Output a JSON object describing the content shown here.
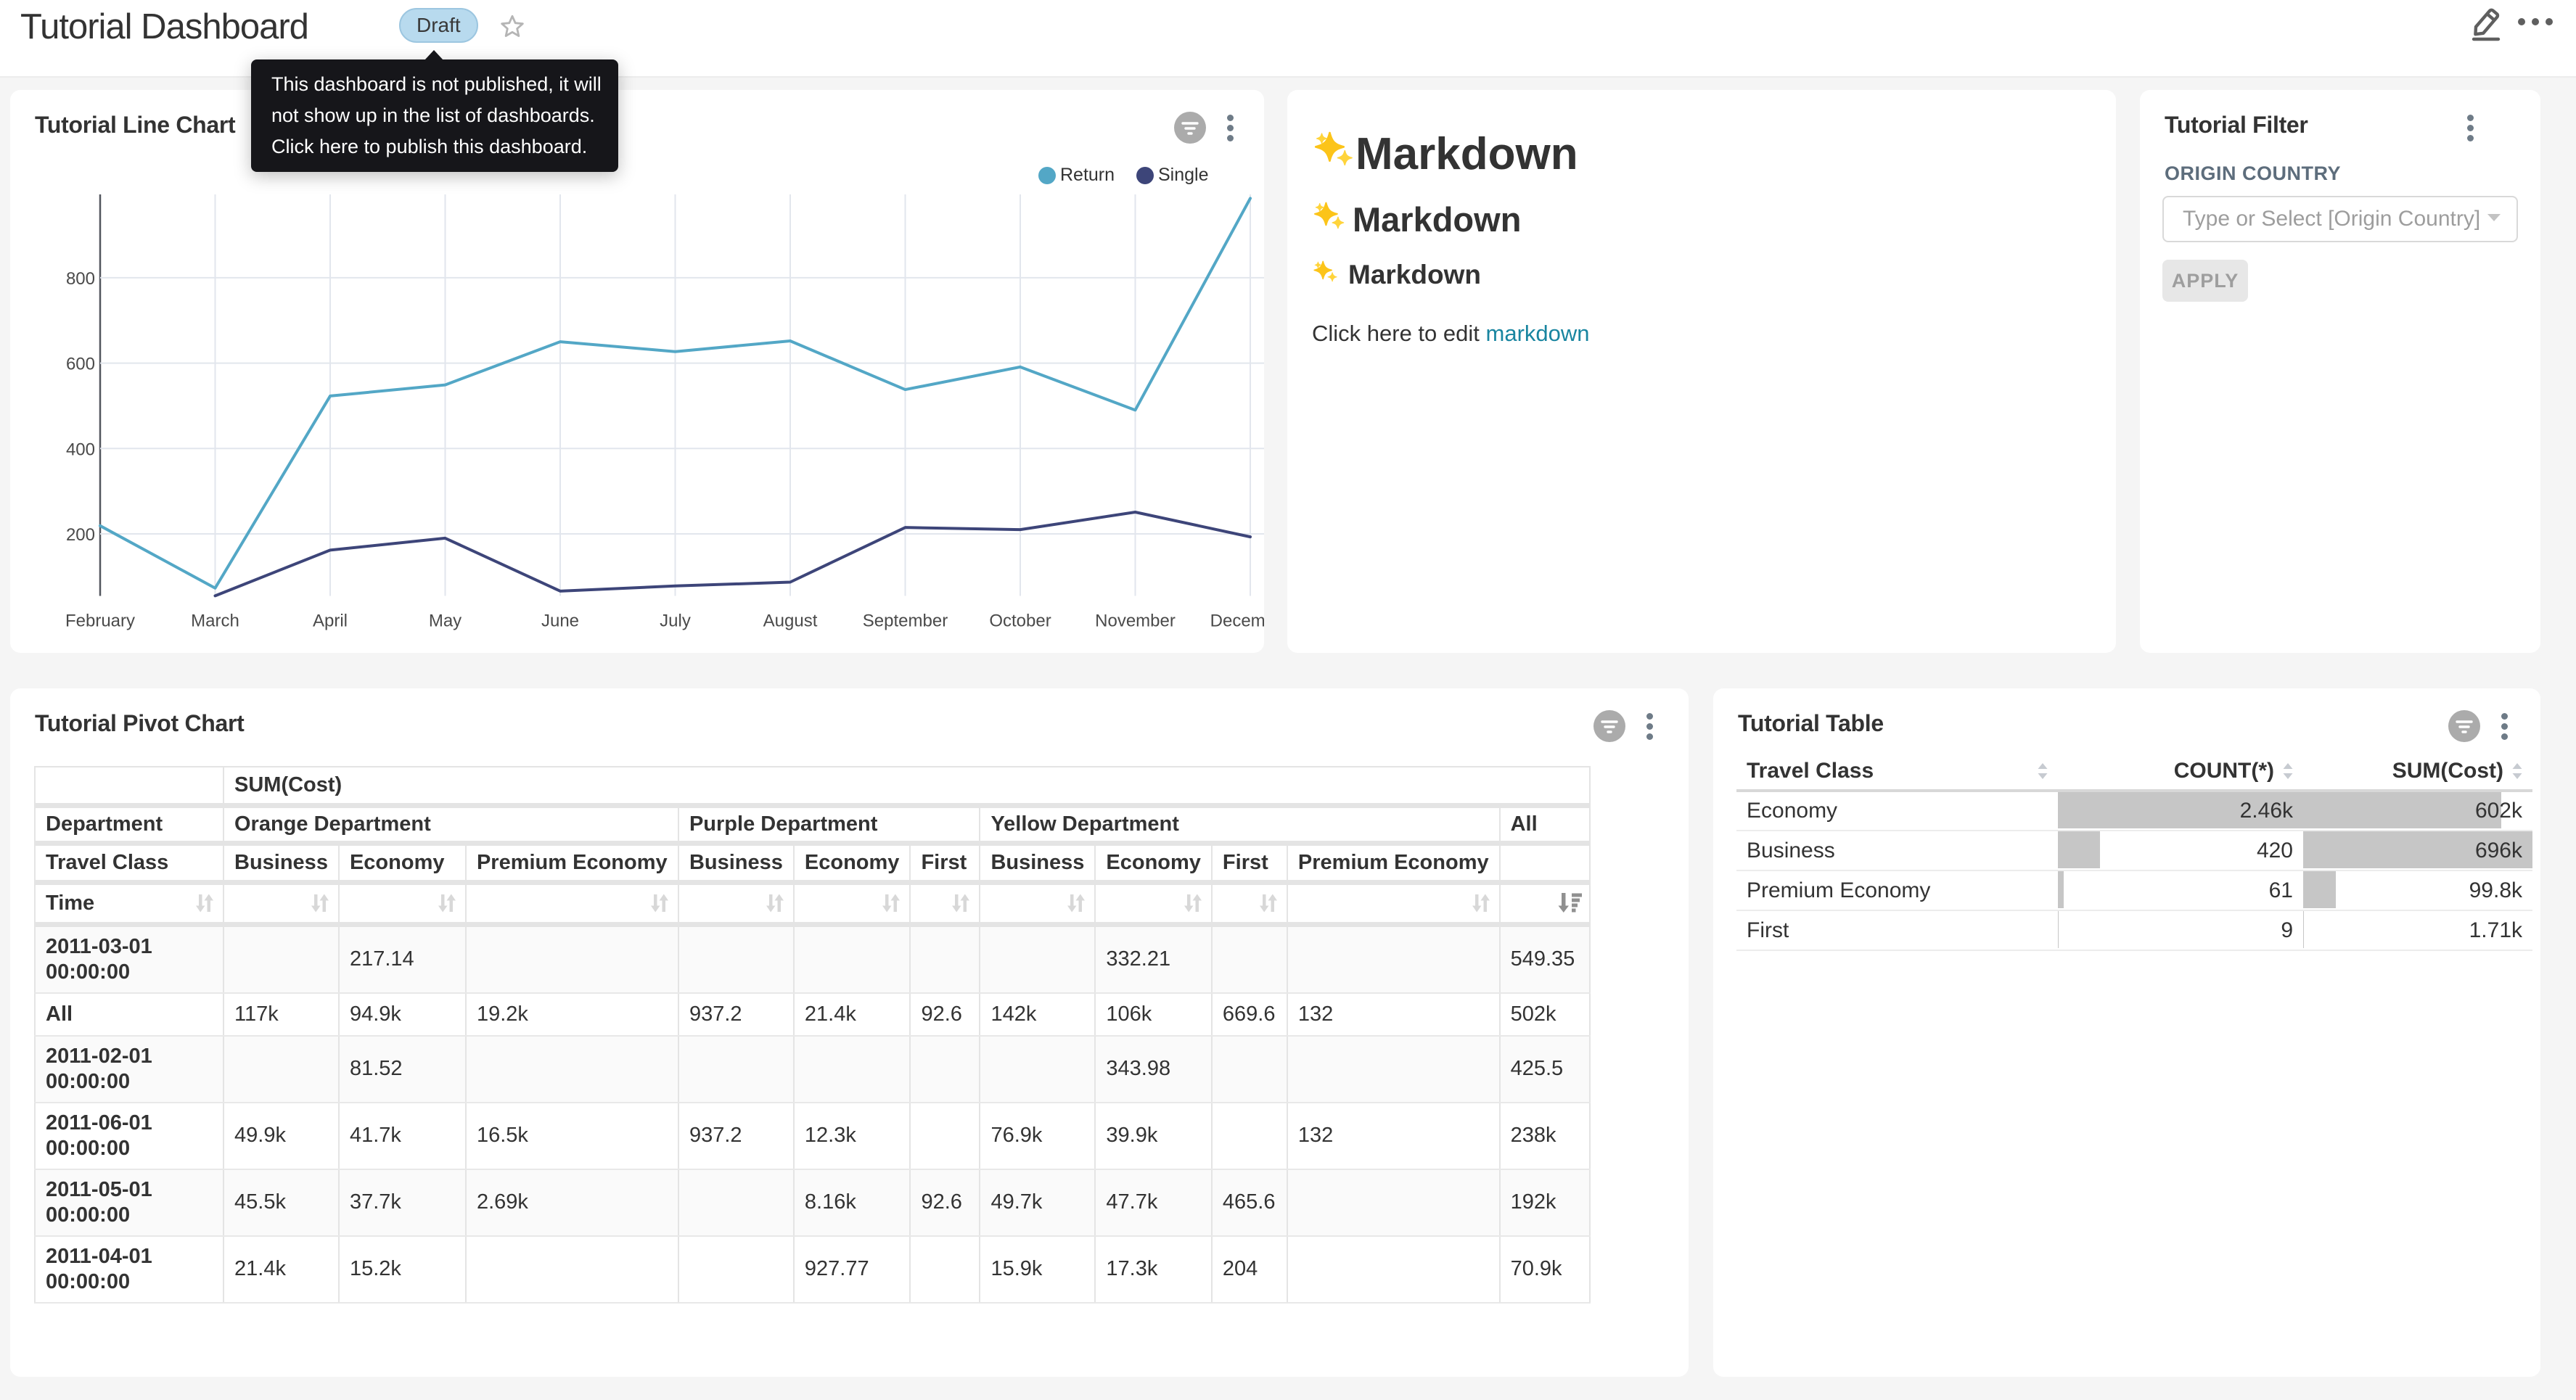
{
  "header": {
    "title": "Tutorial Dashboard",
    "draft_label": "Draft",
    "tooltip_lines": [
      "This dashboard is not published, it will",
      "not show up in the list of dashboards.",
      "Click here to publish this dashboard."
    ]
  },
  "colors": {
    "return_series": "#53a7c6",
    "single_series": "#3d4579",
    "link": "#1985a0",
    "draft_bg": "#b8daee",
    "bar": "#c6c6c6"
  },
  "chart_data": {
    "type": "line",
    "title": "Tutorial Line Chart",
    "categories": [
      "February",
      "March",
      "April",
      "May",
      "June",
      "July",
      "August",
      "September",
      "October",
      "November",
      "December"
    ],
    "series": [
      {
        "name": "Return",
        "color": "#53a7c6",
        "values": [
          219,
          73,
          523,
          549,
          650,
          627,
          652,
          538,
          591,
          490,
          986
        ]
      },
      {
        "name": "Single",
        "color": "#3d4579",
        "values": [
          null,
          55,
          162,
          190,
          66,
          78,
          87,
          215,
          210,
          251,
          193
        ]
      }
    ],
    "yticks": [
      200,
      400,
      600,
      800
    ],
    "ylim": [
      45,
      995
    ],
    "grid": true,
    "legend_position": "top-right",
    "xlabel": "",
    "ylabel": ""
  },
  "line_card": {
    "title": "Tutorial Line Chart"
  },
  "markdown_card": {
    "h1": "Markdown",
    "h2": "Markdown",
    "h3": "Markdown",
    "paragraph_prefix": "Click here to edit ",
    "link_text": "markdown"
  },
  "filter_card": {
    "title": "Tutorial Filter",
    "field_label": "ORIGIN COUNTRY",
    "select_placeholder": "Type or Select [Origin Country]",
    "apply_label": "APPLY"
  },
  "pivot_card": {
    "title": "Tutorial Pivot Chart",
    "metric_label": "SUM(Cost)",
    "row_dim_label": "Department",
    "row_attr_label": "Travel Class",
    "time_label": "Time",
    "col_groups": [
      {
        "label": "Orange Department",
        "cols": [
          "Business",
          "Economy",
          "Premium Economy"
        ]
      },
      {
        "label": "Purple Department",
        "cols": [
          "Business",
          "Economy",
          "First"
        ]
      },
      {
        "label": "Yellow Department",
        "cols": [
          "Business",
          "Economy",
          "First",
          "Premium Economy"
        ]
      },
      {
        "label": "All",
        "cols": [
          ""
        ]
      }
    ],
    "rows": [
      {
        "label": "2011-03-01 00:00:00",
        "two_line": true,
        "values": [
          "",
          "217.14",
          "",
          "",
          "",
          "",
          "",
          "332.21",
          "",
          "",
          "549.35"
        ]
      },
      {
        "label": "All",
        "two_line": false,
        "values": [
          "117k",
          "94.9k",
          "19.2k",
          "937.2",
          "21.4k",
          "92.6",
          "142k",
          "106k",
          "669.6",
          "132",
          "502k"
        ]
      },
      {
        "label": "2011-02-01 00:00:00",
        "two_line": true,
        "values": [
          "",
          "81.52",
          "",
          "",
          "",
          "",
          "",
          "343.98",
          "",
          "",
          "425.5"
        ]
      },
      {
        "label": "2011-06-01 00:00:00",
        "two_line": true,
        "values": [
          "49.9k",
          "41.7k",
          "16.5k",
          "937.2",
          "12.3k",
          "",
          "76.9k",
          "39.9k",
          "",
          "132",
          "238k"
        ]
      },
      {
        "label": "2011-05-01 00:00:00",
        "two_line": true,
        "values": [
          "45.5k",
          "37.7k",
          "2.69k",
          "",
          "8.16k",
          "92.6",
          "49.7k",
          "47.7k",
          "465.6",
          "",
          "192k"
        ]
      },
      {
        "label": "2011-04-01 00:00:00",
        "two_line": true,
        "values": [
          "21.4k",
          "15.2k",
          "",
          "",
          "927.77",
          "",
          "15.9k",
          "17.3k",
          "204",
          "",
          "70.9k"
        ]
      }
    ]
  },
  "table_card": {
    "title": "Tutorial Table",
    "columns": [
      "Travel Class",
      "COUNT(*)",
      "SUM(Cost)"
    ],
    "rows": [
      {
        "label": "Economy",
        "count": "2.46k",
        "count_num": 2460,
        "sum": "602k",
        "sum_num": 602000
      },
      {
        "label": "Business",
        "count": "420",
        "count_num": 420,
        "sum": "696k",
        "sum_num": 696000
      },
      {
        "label": "Premium Economy",
        "count": "61",
        "count_num": 61,
        "sum": "99.8k",
        "sum_num": 99800
      },
      {
        "label": "First",
        "count": "9",
        "count_num": 9,
        "sum": "1.71k",
        "sum_num": 1710
      }
    ]
  }
}
